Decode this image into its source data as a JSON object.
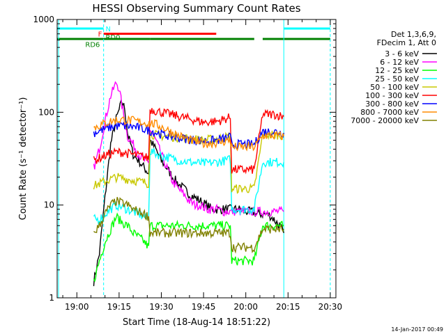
{
  "chart_data": {
    "type": "line",
    "title": "HESSI Observing Summary Count Rates",
    "xlabel": "Start Time (18-Aug-14 18:51:22)",
    "ylabel": "Count Rate (s⁻¹ detector⁻¹)",
    "x_unit": "minutes of day",
    "xlim": [
      1133,
      1232
    ],
    "ylim": [
      1,
      1000
    ],
    "yscale": "log",
    "grid": false,
    "x_ticks": [
      {
        "v": 1140,
        "label": "19:00"
      },
      {
        "v": 1155,
        "label": "19:15"
      },
      {
        "v": 1170,
        "label": "19:30"
      },
      {
        "v": 1185,
        "label": "19:45"
      },
      {
        "v": 1200,
        "label": "20:00"
      },
      {
        "v": 1215,
        "label": "20:15"
      },
      {
        "v": 1230,
        "label": "20:30"
      }
    ],
    "y_ticks": [
      {
        "v": 1,
        "label": "1"
      },
      {
        "v": 10,
        "label": "10"
      },
      {
        "v": 100,
        "label": "100"
      },
      {
        "v": 1000,
        "label": "1000"
      }
    ],
    "legend": {
      "header": [
        "Det 1,3,6,9,",
        "FDecim 1, Att 0"
      ],
      "placement": "right"
    },
    "footer_stamp": "14-Jan-2017 00:49",
    "flag_bars": [
      {
        "label": "N",
        "color": "#00ffff",
        "level": 1,
        "segments": [
          [
            1133,
            1149.5
          ],
          [
            1213.5,
            1230
          ]
        ]
      },
      {
        "label": "F",
        "color": "#ff0000",
        "level": 2,
        "segments": [
          [
            1149.5,
            1189.5
          ]
        ]
      },
      {
        "label": "RD0",
        "color": "#008000",
        "level": 3,
        "segments": [
          [
            1133,
            1149.5
          ],
          [
            1149.5,
            1166
          ],
          [
            1166,
            1195
          ],
          [
            1195,
            1203
          ],
          [
            1206,
            1230
          ]
        ]
      }
    ],
    "flag_bar_labels": [
      {
        "text": "N",
        "color": "#00ffff",
        "x": 1150.2,
        "level": 1
      },
      {
        "text": "F",
        "color": "#ff0000",
        "x": 1147.5,
        "level": 2
      },
      {
        "text": "RD0",
        "color": "#008000",
        "x": 1150.2,
        "level": 2.6
      },
      {
        "text": "RD6",
        "color": "#008000",
        "x": 1143.0,
        "level": 4
      }
    ],
    "vertical_lines": [
      {
        "x": 1133.5,
        "color": "#00ffff",
        "style": "solid"
      },
      {
        "x": 1149.5,
        "color": "#00ffff",
        "style": "dashed"
      },
      {
        "x": 1213.5,
        "color": "#00ffff",
        "style": "solid"
      },
      {
        "x": 1230,
        "color": "#00ffff",
        "style": "dashed"
      }
    ],
    "series": [
      {
        "name": "3 - 6 keV",
        "color": "#000000",
        "x": [
          1146,
          1148,
          1150,
          1152,
          1154,
          1156,
          1157,
          1158,
          1160,
          1162,
          1164,
          1165.5,
          1166,
          1168,
          1170,
          1172,
          1174,
          1176,
          1178,
          1180,
          1182,
          1184,
          1186,
          1188,
          1190,
          1192,
          1194,
          1196,
          1198,
          1200,
          1202,
          1204,
          1206,
          1208,
          1210,
          1212,
          1213.5
        ],
        "y": [
          1.5,
          3,
          12,
          45,
          85,
          130,
          110,
          60,
          35,
          30,
          25,
          22,
          50,
          40,
          30,
          25,
          20,
          17,
          15,
          13,
          12,
          11,
          10,
          9,
          9,
          9,
          9,
          9,
          9,
          8.5,
          8.5,
          8,
          8,
          8,
          7,
          6,
          5
        ]
      },
      {
        "name": "6 - 12 keV",
        "color": "#ff00ff",
        "x": [
          1146,
          1148,
          1150,
          1152,
          1154,
          1155,
          1156,
          1157,
          1158,
          1160,
          1162,
          1164,
          1165.5,
          1166,
          1168,
          1170,
          1172,
          1174,
          1176,
          1178,
          1180,
          1182,
          1184,
          1186,
          1188,
          1190,
          1192,
          1194,
          1196,
          1198,
          1200,
          1202,
          1204,
          1206,
          1208,
          1210,
          1212,
          1213.5
        ],
        "y": [
          25,
          40,
          80,
          150,
          210,
          180,
          120,
          80,
          55,
          45,
          35,
          30,
          28,
          65,
          50,
          35,
          25,
          18,
          15,
          13,
          11,
          10,
          10,
          9,
          9,
          9,
          8.5,
          8.5,
          8.5,
          8.5,
          8.5,
          8.5,
          8.5,
          8.5,
          8.5,
          8.5,
          8.5,
          8.5
        ]
      },
      {
        "name": "12 - 25 keV",
        "color": "#00ff00",
        "x": [
          1146,
          1148,
          1150,
          1152,
          1154,
          1156,
          1158,
          1160,
          1162,
          1164,
          1165.5,
          1166,
          1170,
          1175,
          1180,
          1185,
          1190,
          1194.5,
          1195,
          1198,
          1200,
          1203,
          1206,
          1210,
          1213.5
        ],
        "y": [
          1.5,
          2.5,
          4,
          5.5,
          7.5,
          6.5,
          6,
          5,
          4.5,
          4,
          3.5,
          6,
          6,
          6,
          6,
          6,
          6,
          6,
          2.5,
          2.5,
          2.5,
          2.5,
          6,
          6,
          6
        ]
      },
      {
        "name": "25 - 50 keV",
        "color": "#00ffff",
        "x": [
          1146,
          1148,
          1150,
          1152,
          1154,
          1156,
          1158,
          1160,
          1162,
          1164,
          1165.5,
          1166,
          1170,
          1175,
          1180,
          1185,
          1190,
          1194.5,
          1195,
          1198,
          1200,
          1203,
          1206,
          1210,
          1213.5
        ],
        "y": [
          7,
          7,
          8,
          9,
          10,
          9.5,
          9,
          8.5,
          8,
          7.5,
          7,
          38,
          34,
          31,
          29,
          28,
          29,
          31,
          9,
          9,
          9,
          9,
          29,
          29,
          29
        ]
      },
      {
        "name": "50 - 100 keV",
        "color": "#c8c800",
        "x": [
          1146,
          1148,
          1150,
          1152,
          1154,
          1156,
          1158,
          1160,
          1162,
          1164,
          1165.5,
          1166,
          1170,
          1175,
          1180,
          1185,
          1190,
          1194.5,
          1195,
          1198,
          1200,
          1203,
          1206,
          1210,
          1213.5
        ],
        "y": [
          16,
          17,
          18,
          19,
          20,
          19.5,
          19,
          18.5,
          18,
          17.5,
          17,
          58,
          56,
          54,
          52,
          50,
          52,
          55,
          15,
          15,
          15,
          15,
          57,
          57,
          57
        ]
      },
      {
        "name": "100 - 300 keV",
        "color": "#ff0000",
        "x": [
          1146,
          1148,
          1150,
          1152,
          1154,
          1156,
          1158,
          1160,
          1162,
          1164,
          1165.5,
          1166,
          1170,
          1175,
          1180,
          1185,
          1190,
          1194.5,
          1195,
          1198,
          1200,
          1203,
          1206,
          1210,
          1213.5
        ],
        "y": [
          30,
          32,
          34,
          36,
          37,
          37,
          36,
          35,
          34,
          33,
          32,
          108,
          100,
          92,
          85,
          78,
          80,
          88,
          24,
          24,
          24,
          24,
          95,
          95,
          90
        ]
      },
      {
        "name": "300 - 800 keV",
        "color": "#0000ff",
        "x": [
          1146,
          1148,
          1150,
          1152,
          1154,
          1156,
          1158,
          1160,
          1162,
          1164,
          1165.5,
          1166,
          1170,
          1175,
          1180,
          1185,
          1190,
          1194.5,
          1195,
          1198,
          1200,
          1203,
          1206,
          1210,
          1213.5
        ],
        "y": [
          60,
          63,
          66,
          69,
          71,
          72,
          71,
          70,
          68,
          66,
          64,
          63,
          58,
          54,
          51,
          49,
          50,
          54,
          45,
          45,
          45,
          45,
          62,
          62,
          60
        ]
      },
      {
        "name": "800 - 7000 keV",
        "color": "#ff8c00",
        "x": [
          1146,
          1148,
          1150,
          1152,
          1154,
          1156,
          1158,
          1160,
          1162,
          1164,
          1166,
          1168,
          1170,
          1172,
          1175,
          1180,
          1185,
          1190,
          1194.5,
          1195,
          1198,
          1200,
          1203,
          1206,
          1210,
          1213.5
        ],
        "y": [
          68,
          72,
          76,
          80,
          82,
          83,
          82,
          81,
          79,
          77,
          76,
          74,
          70,
          65,
          58,
          50,
          46,
          47,
          50,
          42,
          42,
          42,
          42,
          56,
          56,
          55
        ]
      },
      {
        "name": "7000 - 20000 keV",
        "color": "#808000",
        "x": [
          1146,
          1148,
          1150,
          1152,
          1154,
          1156,
          1158,
          1160,
          1162,
          1164,
          1165.5,
          1166,
          1170,
          1175,
          1180,
          1185,
          1190,
          1194.5,
          1195,
          1198,
          1200,
          1203,
          1206,
          1210,
          1213.5
        ],
        "y": [
          5,
          6,
          8,
          10,
          11,
          10.5,
          10,
          9,
          8.5,
          8,
          7.5,
          5,
          5,
          5,
          5,
          5,
          5,
          5,
          3.5,
          3.5,
          3.5,
          3.5,
          5.5,
          5.5,
          5.5
        ]
      }
    ]
  }
}
